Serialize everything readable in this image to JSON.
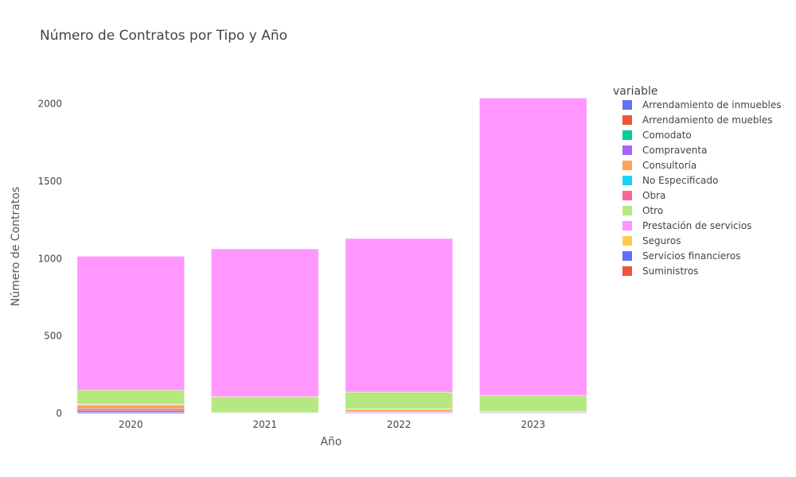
{
  "chart_data": {
    "type": "bar",
    "stacked": true,
    "title": "Número de Contratos por Tipo y Año",
    "xlabel": "Año",
    "ylabel": "Número de Contratos",
    "categories": [
      "2020",
      "2021",
      "2022",
      "2023"
    ],
    "ylim": [
      0,
      2260
    ],
    "yticks": [
      0,
      500,
      1000,
      1500,
      2000
    ],
    "grid": false,
    "legend_title": "variable",
    "legend_position": "right",
    "series": [
      {
        "name": "Arrendamiento de inmuebles",
        "color": "#636efa",
        "values": [
          8,
          3,
          5,
          4
        ]
      },
      {
        "name": "Arrendamiento de muebles",
        "color": "#ef553b",
        "values": [
          12,
          0,
          3,
          0
        ]
      },
      {
        "name": "Comodato",
        "color": "#00cc96",
        "values": [
          0,
          0,
          0,
          0
        ]
      },
      {
        "name": "Compraventa",
        "color": "#ab63fa",
        "values": [
          10,
          2,
          6,
          4
        ]
      },
      {
        "name": "Consultoría",
        "color": "#ffa15a",
        "values": [
          25,
          0,
          12,
          5
        ]
      },
      {
        "name": "No Especificado",
        "color": "#19d3f3",
        "values": [
          0,
          0,
          0,
          0
        ]
      },
      {
        "name": "Obra",
        "color": "#ff6692",
        "values": [
          3,
          0,
          2,
          0
        ]
      },
      {
        "name": "Otro",
        "color": "#b6e880",
        "values": [
          92,
          103,
          110,
          102
        ]
      },
      {
        "name": "Prestación de servicios",
        "color": "#ff97ff",
        "values": [
          865,
          955,
          992,
          1922
        ]
      },
      {
        "name": "Seguros",
        "color": "#fecb52",
        "values": [
          0,
          0,
          0,
          0
        ]
      },
      {
        "name": "Servicios financieros",
        "color": "#636efa",
        "values": [
          0,
          0,
          0,
          0
        ]
      },
      {
        "name": "Suministros",
        "color": "#ef553b",
        "values": [
          0,
          0,
          0,
          0
        ]
      }
    ]
  }
}
